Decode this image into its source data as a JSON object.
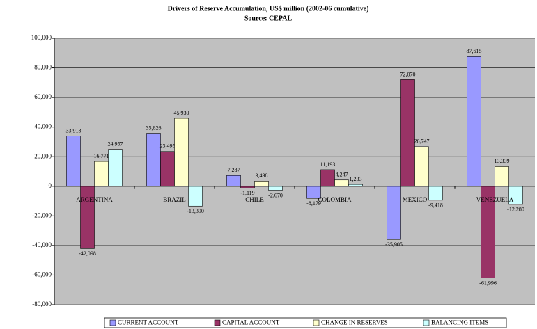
{
  "chart_data": {
    "type": "bar",
    "title": "Drivers of Reserve Accumulation, US$ million (2002-06 cumulative)",
    "subtitle": "Source: CEPAL",
    "categories": [
      "ARGENTINA",
      "BRAZIL",
      "CHILE",
      "COLOMBIA",
      "MEXICO",
      "VENEZUELA"
    ],
    "series": [
      {
        "name": "CURRENT ACCOUNT",
        "color": "#9999ff",
        "values": [
          33913,
          35826,
          7287,
          -8179,
          -35905,
          87615
        ],
        "value_labels": [
          "33,913",
          "35,826",
          "7,287",
          "-8,179",
          "-35,905",
          "87,615"
        ]
      },
      {
        "name": "CAPITAL ACCOUNT",
        "color": "#993366",
        "values": [
          -42098,
          23495,
          -1119,
          11193,
          72070,
          -61996
        ],
        "value_labels": [
          "-42,098",
          "23,495",
          "-1,119",
          "11,193",
          "72,070",
          "-61,996"
        ]
      },
      {
        "name": "CHANGE IN RESERVES",
        "color": "#ffffcc",
        "values": [
          16771,
          45930,
          3498,
          4247,
          26747,
          13339
        ],
        "value_labels": [
          "16,771",
          "45,930",
          "3,498",
          "4,247",
          "26,747",
          "13,339"
        ]
      },
      {
        "name": "BALANCING ITEMS",
        "color": "#ccffff",
        "values": [
          24957,
          -13390,
          -2670,
          1233,
          -9418,
          -12280
        ],
        "value_labels": [
          "24,957",
          "-13,390",
          "-2,670",
          "1,233",
          "-9,418",
          "-12,280"
        ]
      }
    ],
    "ylim": [
      -80000,
      100000
    ],
    "yticks": [
      {
        "value": -80000,
        "label": "-80,000"
      },
      {
        "value": -60000,
        "label": "-60,000"
      },
      {
        "value": -40000,
        "label": "-40,000"
      },
      {
        "value": -20000,
        "label": "-20,000"
      },
      0,
      {
        "value": 20000,
        "label": "20,000"
      },
      {
        "value": 40000,
        "label": "40,000"
      },
      {
        "value": 60000,
        "label": "60,000"
      },
      {
        "value": 80000,
        "label": "80,000"
      },
      {
        "value": 100000,
        "label": "100,000"
      }
    ],
    "grid": true,
    "legend": "bottom"
  }
}
